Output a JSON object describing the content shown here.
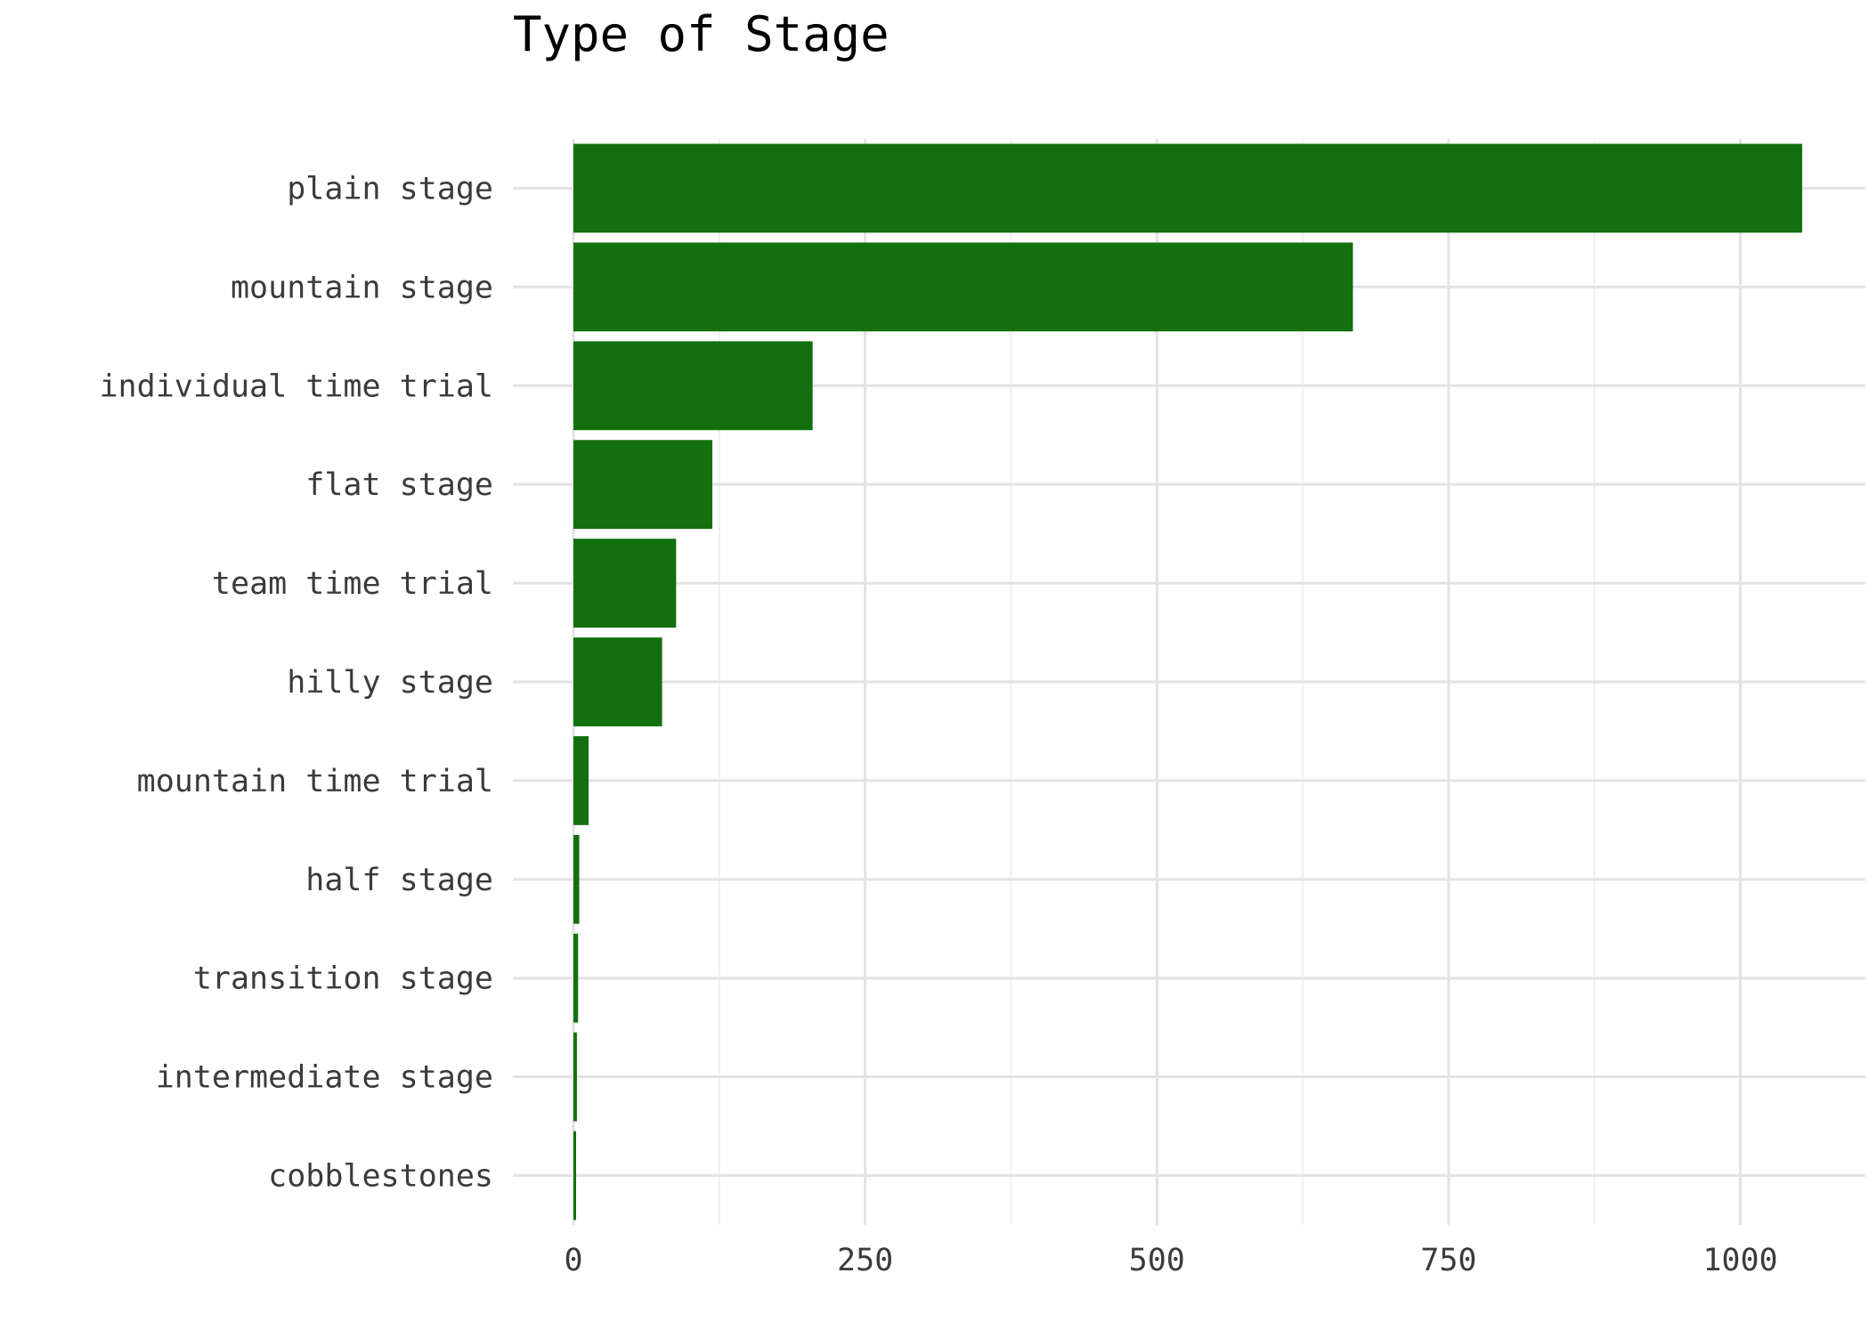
{
  "chart_data": {
    "type": "bar",
    "orientation": "horizontal",
    "title": "Type of Stage",
    "xlabel": "",
    "ylabel": "",
    "categories": [
      "plain stage",
      "mountain stage",
      "individual time trial",
      "flat stage",
      "team time trial",
      "hilly stage",
      "mountain time trial",
      "half stage",
      "transition stage",
      "intermediate stage",
      "cobblestones"
    ],
    "values": [
      1053,
      668,
      205,
      119,
      88,
      76,
      13,
      5,
      4,
      3,
      2
    ],
    "xlim": [
      -26,
      1106
    ],
    "x_ticks": [
      0,
      250,
      500,
      750,
      1000
    ],
    "x_tick_labels": [
      "0",
      "250",
      "500",
      "750",
      "1000"
    ],
    "grid": true,
    "bar_color": "#13700f"
  }
}
